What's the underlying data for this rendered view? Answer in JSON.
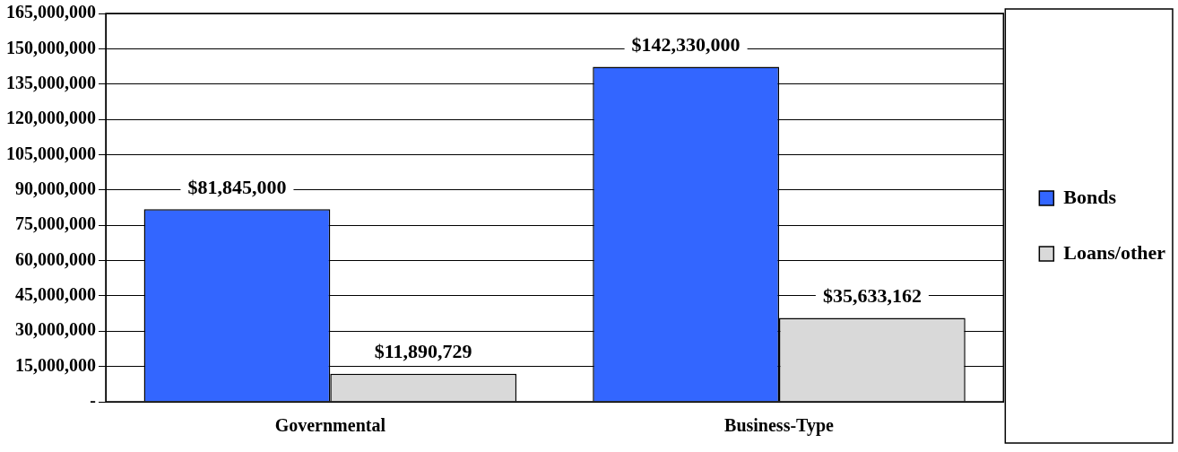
{
  "chart_data": {
    "type": "bar",
    "categories": [
      "Governmental",
      "Business-Type"
    ],
    "series": [
      {
        "name": "Bonds",
        "color": "#3366ff",
        "values": [
          81845000,
          142330000
        ],
        "value_labels": [
          "$81,845,000",
          "$142,330,000"
        ]
      },
      {
        "name": "Loans/other",
        "color": "#d9d9d9",
        "values": [
          11890729,
          35633162
        ],
        "value_labels": [
          "$11,890,729",
          "$35,633,162"
        ]
      }
    ],
    "ylim": [
      0,
      165000000
    ],
    "yticks": [
      {
        "value": 0,
        "label": "-"
      },
      {
        "value": 15000000,
        "label": "15,000,000"
      },
      {
        "value": 30000000,
        "label": "30,000,000"
      },
      {
        "value": 45000000,
        "label": "45,000,000"
      },
      {
        "value": 60000000,
        "label": "60,000,000"
      },
      {
        "value": 75000000,
        "label": "75,000,000"
      },
      {
        "value": 90000000,
        "label": "90,000,000"
      },
      {
        "value": 105000000,
        "label": "105,000,000"
      },
      {
        "value": 120000000,
        "label": "120,000,000"
      },
      {
        "value": 135000000,
        "label": "135,000,000"
      },
      {
        "value": 150000000,
        "label": "150,000,000"
      },
      {
        "value": 165000000,
        "label": "165,000,000"
      }
    ],
    "grid": "y",
    "legend": "right"
  }
}
